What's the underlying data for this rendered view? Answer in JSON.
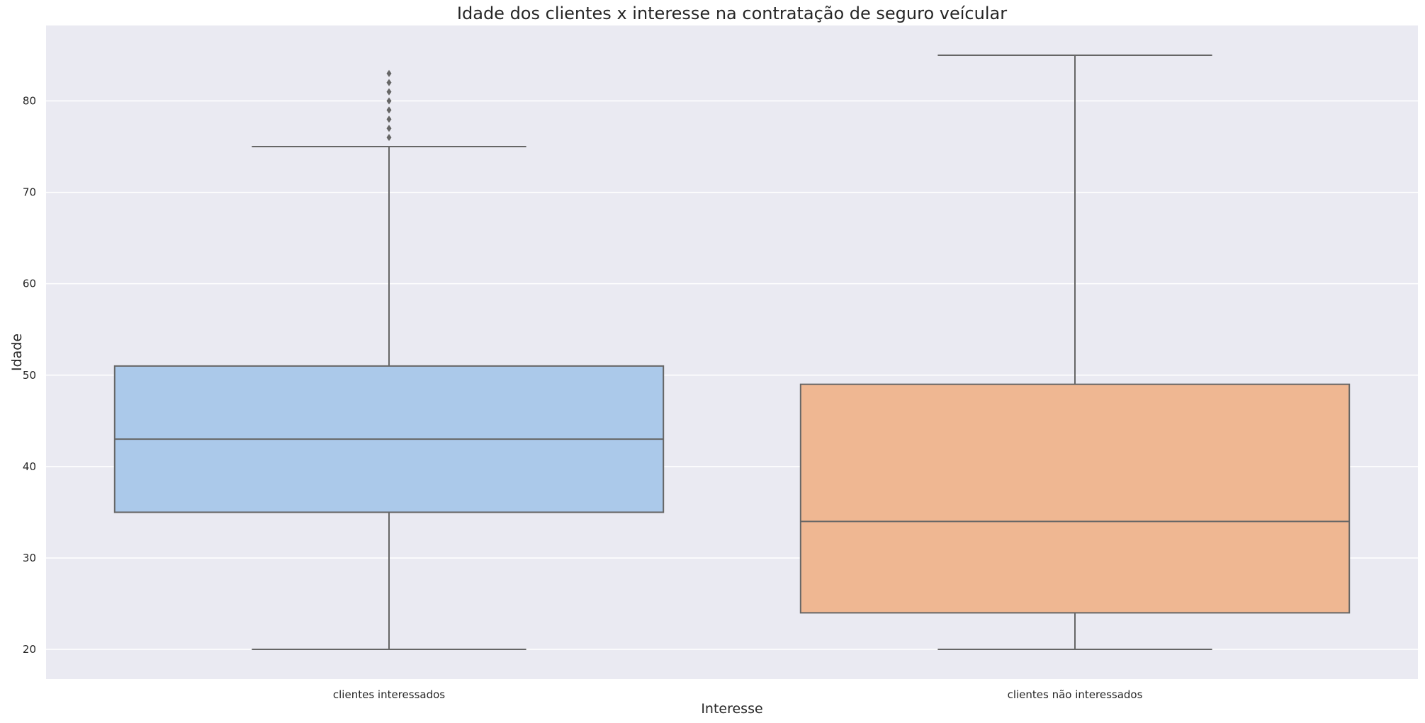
{
  "chart_data": {
    "type": "box",
    "title": "Idade dos clientes x interesse na contratação de seguro veícular",
    "xlabel": "Interesse",
    "ylabel": "Idade",
    "ylim": [
      16.75,
      88.25
    ],
    "yticks": [
      20,
      30,
      40,
      50,
      60,
      70,
      80
    ],
    "grid": true,
    "background": "#eaeaf2",
    "grid_color": "#ffffff",
    "line_color": "#666666",
    "categories": [
      "clientes interessados",
      "clientes não interessados"
    ],
    "boxes": [
      {
        "category": "clientes interessados",
        "whisker_low": 20,
        "q1": 35,
        "median": 43,
        "q3": 51,
        "whisker_high": 75,
        "outliers": [
          76,
          77,
          78,
          79,
          80,
          81,
          82,
          83
        ],
        "color": "#abc9ea"
      },
      {
        "category": "clientes não interessados",
        "whisker_low": 20,
        "q1": 24,
        "median": 34,
        "q3": 49,
        "whisker_high": 85,
        "outliers": [],
        "color": "#efb792"
      }
    ]
  }
}
